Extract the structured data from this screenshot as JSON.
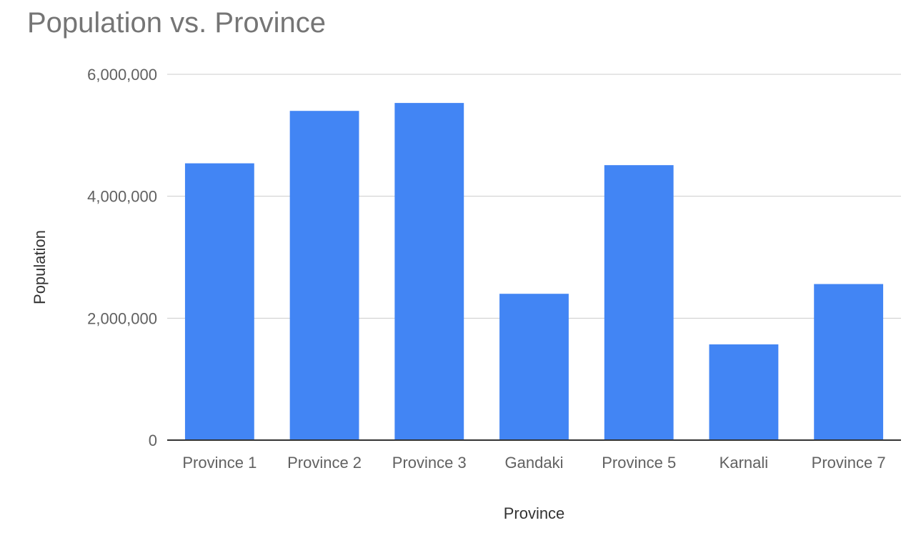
{
  "colors": {
    "bar": "#4285f4",
    "grid": "#cccccc",
    "baseline": "#333333",
    "title": "#757575",
    "tick_label": "#616161",
    "axis_title": "#333333"
  },
  "chart_data": {
    "type": "bar",
    "title": "Population vs. Province",
    "xlabel": "Province",
    "ylabel": "Population",
    "categories": [
      "Province 1",
      "Province 2",
      "Province 3",
      "Gandaki",
      "Province 5",
      "Karnali",
      "Province 7"
    ],
    "values": [
      4540000,
      5400000,
      5530000,
      2400000,
      4510000,
      1570000,
      2560000
    ],
    "ylim": [
      0,
      6000000
    ],
    "yticks": [
      0,
      2000000,
      4000000,
      6000000
    ],
    "ytick_labels": [
      "0",
      "2,000,000",
      "4,000,000",
      "6,000,000"
    ],
    "grid": true,
    "legend": "none"
  }
}
